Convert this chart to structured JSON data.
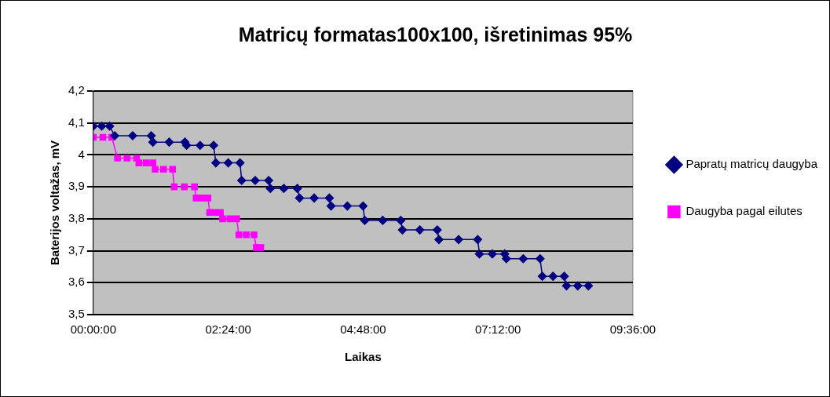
{
  "chart_data": {
    "type": "line",
    "title": "Matricų formatas100x100, išretinimas 95%",
    "xlabel": "Laikas",
    "ylabel": "Baterijos voltažas, mV",
    "xlim": [
      0,
      9.6
    ],
    "xticks": [
      {
        "value": 0,
        "label": "00:00:00"
      },
      {
        "value": 2.4,
        "label": "02:24:00"
      },
      {
        "value": 4.8,
        "label": "04:48:00"
      },
      {
        "value": 7.2,
        "label": "07:12:00"
      },
      {
        "value": 9.6,
        "label": "09:36:00"
      }
    ],
    "ylim": [
      3.5,
      4.2
    ],
    "yticks": [
      {
        "value": 3.5,
        "label": "3,5"
      },
      {
        "value": 3.6,
        "label": "3,6"
      },
      {
        "value": 3.7,
        "label": "3,7"
      },
      {
        "value": 3.8,
        "label": "3,8"
      },
      {
        "value": 3.9,
        "label": "3,9"
      },
      {
        "value": 4,
        "label": "4"
      },
      {
        "value": 4.1,
        "label": "4,1"
      },
      {
        "value": 4.2,
        "label": "4,2"
      }
    ],
    "grid": "y",
    "legend": "right",
    "series": [
      {
        "name": "Papratų matricų daugyba",
        "color": "#000080",
        "marker": "diamond",
        "x": [
          0,
          0.15,
          0.29,
          0.38,
          0.7,
          1.03,
          1.06,
          1.35,
          1.63,
          1.66,
          1.9,
          2.14,
          2.18,
          2.4,
          2.61,
          2.64,
          2.88,
          3.12,
          3.15,
          3.39,
          3.63,
          3.67,
          3.93,
          4.2,
          4.23,
          4.52,
          4.8,
          4.83,
          5.15,
          5.47,
          5.5,
          5.81,
          6.12,
          6.15,
          6.5,
          6.84,
          6.87,
          7.1,
          7.32,
          7.35,
          7.65,
          7.95,
          7.99,
          8.18,
          8.38,
          8.42,
          8.62,
          8.81
        ],
        "values": [
          4.09,
          4.09,
          4.09,
          4.06,
          4.06,
          4.06,
          4.04,
          4.04,
          4.04,
          4.03,
          4.03,
          4.03,
          3.975,
          3.975,
          3.975,
          3.92,
          3.92,
          3.92,
          3.895,
          3.895,
          3.895,
          3.865,
          3.865,
          3.865,
          3.84,
          3.84,
          3.84,
          3.795,
          3.795,
          3.795,
          3.765,
          3.765,
          3.765,
          3.735,
          3.735,
          3.735,
          3.69,
          3.69,
          3.69,
          3.675,
          3.675,
          3.675,
          3.62,
          3.62,
          3.62,
          3.59,
          3.59,
          3.59
        ]
      },
      {
        "name": "Daugyba pagal eilutes",
        "color": "#ff00ff",
        "marker": "square",
        "x": [
          0,
          0.17,
          0.33,
          0.43,
          0.6,
          0.77,
          0.81,
          0.94,
          1.06,
          1.1,
          1.25,
          1.41,
          1.44,
          1.62,
          1.8,
          1.83,
          1.94,
          2.04,
          2.07,
          2.16,
          2.26,
          2.3,
          2.43,
          2.55,
          2.59,
          2.72,
          2.86,
          2.9,
          2.98
        ],
        "values": [
          4.055,
          4.055,
          4.055,
          3.99,
          3.99,
          3.99,
          3.975,
          3.975,
          3.975,
          3.955,
          3.955,
          3.955,
          3.9,
          3.9,
          3.9,
          3.865,
          3.865,
          3.865,
          3.82,
          3.82,
          3.82,
          3.8,
          3.8,
          3.8,
          3.75,
          3.75,
          3.75,
          3.71,
          3.71
        ]
      }
    ]
  }
}
